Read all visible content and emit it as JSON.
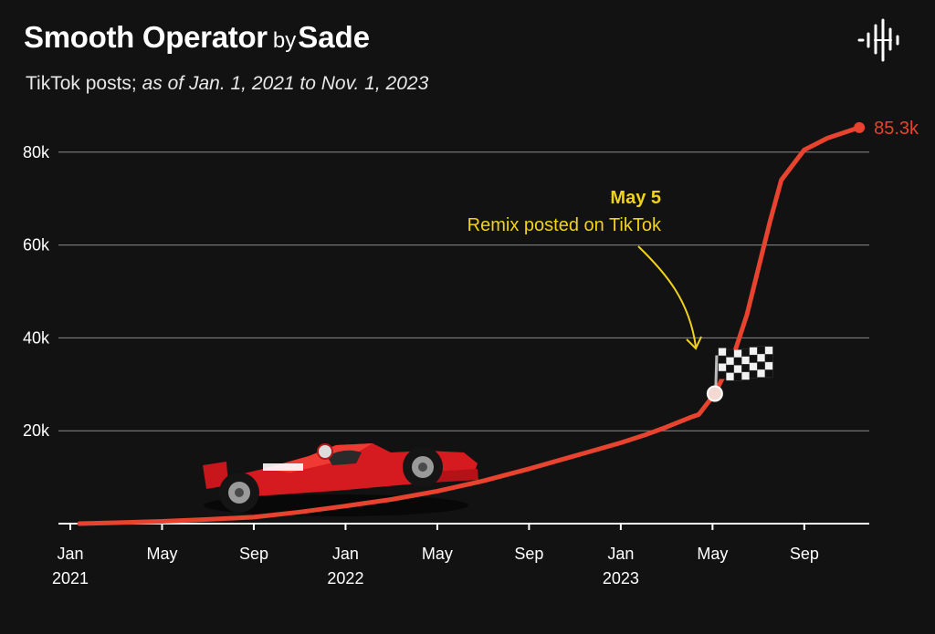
{
  "header": {
    "song": "Smooth Operator",
    "by": "by",
    "artist": "Sade",
    "subtitle_prefix": "TikTok posts; ",
    "subtitle_range": "as of Jan. 1, 2021 to Nov. 1, 2023"
  },
  "logo": {
    "icon": "soundwave-logo-icon"
  },
  "colors": {
    "background": "#121212",
    "line": "#e8432f",
    "annotation": "#f1d21a",
    "grid": "#8a8a8a",
    "text": "#ffffff"
  },
  "chart_data": {
    "type": "line",
    "title": "Smooth Operator by Sade",
    "subtitle": "TikTok posts; as of Jan. 1, 2021 to Nov. 1, 2023",
    "x_unit": "months since Jan 2021",
    "x_ticks": [
      {
        "x": 0,
        "label": "Jan",
        "year": "2021"
      },
      {
        "x": 4,
        "label": "May",
        "year": ""
      },
      {
        "x": 8,
        "label": "Sep",
        "year": ""
      },
      {
        "x": 12,
        "label": "Jan",
        "year": "2022"
      },
      {
        "x": 16,
        "label": "May",
        "year": ""
      },
      {
        "x": 20,
        "label": "Sep",
        "year": ""
      },
      {
        "x": 24,
        "label": "Jan",
        "year": "2023"
      },
      {
        "x": 28,
        "label": "May",
        "year": ""
      },
      {
        "x": 32,
        "label": "Sep",
        "year": ""
      }
    ],
    "y_ticks": [
      {
        "value": 20000,
        "label": "20k"
      },
      {
        "value": 40000,
        "label": "40k"
      },
      {
        "value": 60000,
        "label": "60k"
      },
      {
        "value": 80000,
        "label": "80k"
      }
    ],
    "xlim": [
      -0.6,
      35
    ],
    "ylim": [
      0,
      90000
    ],
    "grid": true,
    "series": [
      {
        "name": "TikTok posts",
        "points": [
          [
            0.4,
            0
          ],
          [
            2,
            200
          ],
          [
            4,
            500
          ],
          [
            6,
            900
          ],
          [
            8,
            1400
          ],
          [
            10,
            2500
          ],
          [
            12,
            3800
          ],
          [
            14,
            5200
          ],
          [
            16,
            7000
          ],
          [
            18,
            9200
          ],
          [
            20,
            11800
          ],
          [
            22,
            14600
          ],
          [
            24,
            17400
          ],
          [
            25,
            19000
          ],
          [
            26,
            20800
          ],
          [
            27,
            22800
          ],
          [
            27.4,
            23500
          ],
          [
            28.1,
            28000
          ],
          [
            28.5,
            32000
          ],
          [
            29,
            37500
          ],
          [
            29.5,
            45000
          ],
          [
            30,
            55000
          ],
          [
            30.5,
            65000
          ],
          [
            31,
            74000
          ],
          [
            32,
            80500
          ],
          [
            33,
            83000
          ],
          [
            34.4,
            85300
          ]
        ]
      }
    ],
    "end_label": "85.3k",
    "annotation": {
      "x": 28.1,
      "y": 28000,
      "date": "May 5",
      "text": "Remix posted on TikTok",
      "marker": "checkered-flag"
    },
    "decoration": "race-car"
  }
}
